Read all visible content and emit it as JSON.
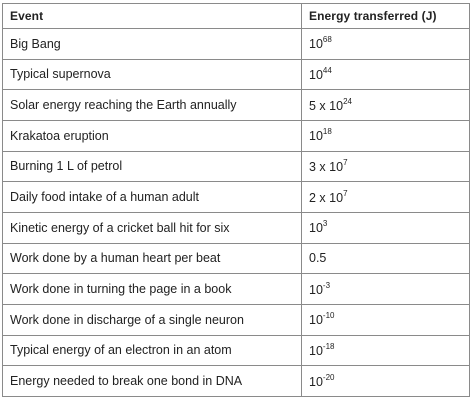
{
  "table": {
    "headers": [
      "Event",
      "Energy transferred (J)"
    ],
    "rows": [
      {
        "event": "Big Bang",
        "base": "10",
        "exp": "68"
      },
      {
        "event": "Typical supernova",
        "base": "10",
        "exp": "44"
      },
      {
        "event": "Solar energy reaching the Earth annually",
        "base": "5 x 10",
        "exp": "24"
      },
      {
        "event": "Krakatoa eruption",
        "base": "10",
        "exp": "18"
      },
      {
        "event": "Burning 1 L of petrol",
        "base": "3 x 10",
        "exp": "7"
      },
      {
        "event": "Daily food intake of a human adult",
        "base": "2 x 10",
        "exp": "7"
      },
      {
        "event": "Kinetic energy of a cricket ball hit for six",
        "base": "10",
        "exp": "3"
      },
      {
        "event": "Work done by a human heart per beat",
        "base": "0.5",
        "exp": ""
      },
      {
        "event": "Work done in turning the page in a book",
        "base": "10",
        "exp": "-3"
      },
      {
        "event": "Work done in discharge of a single neuron",
        "base": "10",
        "exp": "-10"
      },
      {
        "event": "Typical energy of an electron in an atom",
        "base": "10",
        "exp": "-18"
      },
      {
        "event": "Energy needed to break one bond in DNA",
        "base": "10",
        "exp": "-20"
      }
    ]
  }
}
